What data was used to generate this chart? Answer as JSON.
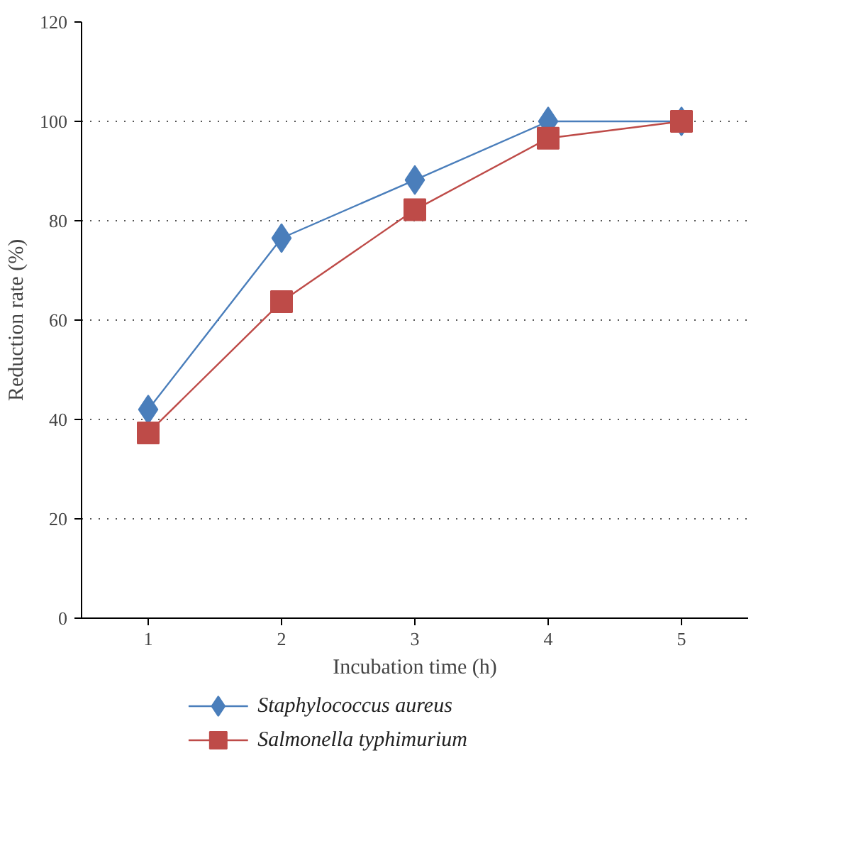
{
  "chart_data": {
    "type": "line",
    "xlabel": "Incubation time (h)",
    "ylabel": "Reduction rate (%)",
    "categories": [
      "1",
      "2",
      "3",
      "4",
      "5"
    ],
    "series": [
      {
        "name": "Staphylococcus aureus",
        "color": "#4a7ebb",
        "values": [
          42,
          76.5,
          88.2,
          100,
          100
        ],
        "marker": "diamond"
      },
      {
        "name": "Salmonella typhimurium",
        "color": "#be4b48",
        "values": [
          37.3,
          63.7,
          82.2,
          96.6,
          100
        ],
        "marker": "square"
      }
    ],
    "ylim": [
      0,
      120
    ],
    "yticks": [
      0,
      20,
      40,
      60,
      80,
      100,
      120
    ],
    "grid": "y",
    "legend": "bottom",
    "line_style": "solid"
  }
}
